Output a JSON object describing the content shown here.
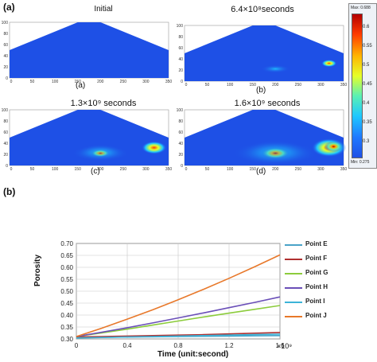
{
  "figure": {
    "label_a": "(a)",
    "label_b": "(b)"
  },
  "simulations": [
    {
      "title": "Initial",
      "sub": "(a)",
      "plume": 0
    },
    {
      "title": "6.4×10⁸seconds",
      "sub": "(b)",
      "plume": 1
    },
    {
      "title": "1.3×10⁹ seconds",
      "sub": "(c)",
      "plume": 2
    },
    {
      "title": "1.6×10⁹ seconds",
      "sub": "(d)",
      "plume": 3
    }
  ],
  "sim_axes": {
    "y_ticks": [
      "100",
      "80",
      "60",
      "40",
      "20",
      "0"
    ],
    "x_ticks": [
      "0",
      "50",
      "100",
      "150",
      "200",
      "250",
      "300",
      "350"
    ]
  },
  "colorbar": {
    "max_label": "Max: 0.688",
    "min_label": "Min: 0.275",
    "ticks": [
      "0.6",
      "0.55",
      "0.5",
      "0.45",
      "0.4",
      "0.35",
      "0.3"
    ],
    "colors": [
      "#b40000",
      "#ff3c00",
      "#ffb400",
      "#e6ff28",
      "#5af0b4",
      "#1ec8ff",
      "#1e78ff",
      "#1e50e6"
    ]
  },
  "chart_data": {
    "type": "line",
    "xlabel": "Time (unit:second)",
    "ylabel": "Porosity",
    "x_multiplier": "×10⁹",
    "xlim": [
      0,
      1.6
    ],
    "ylim": [
      0.3,
      0.7
    ],
    "x_ticks": [
      "0",
      "0.4",
      "0.8",
      "1.2",
      "1.6"
    ],
    "y_ticks": [
      "0.70",
      "0.65",
      "0.60",
      "0.55",
      "0.50",
      "0.45",
      "0.40",
      "0.35",
      "0.30"
    ],
    "grid": true,
    "legend_position": "right",
    "x": [
      0,
      0.2,
      0.4,
      0.6,
      0.8,
      1.0,
      1.2,
      1.4,
      1.6
    ],
    "series": [
      {
        "name": "Point E",
        "color": "#4aa3c8",
        "values": [
          0.306,
          0.307,
          0.308,
          0.309,
          0.31,
          0.311,
          0.312,
          0.313,
          0.314
        ]
      },
      {
        "name": "Point F",
        "color": "#b03030",
        "values": [
          0.308,
          0.31,
          0.312,
          0.314,
          0.316,
          0.318,
          0.321,
          0.324,
          0.327
        ]
      },
      {
        "name": "Point G",
        "color": "#8ccc3c",
        "values": [
          0.31,
          0.325,
          0.341,
          0.358,
          0.375,
          0.392,
          0.408,
          0.424,
          0.44
        ]
      },
      {
        "name": "Point H",
        "color": "#6a4fb8",
        "values": [
          0.31,
          0.328,
          0.347,
          0.367,
          0.388,
          0.409,
          0.431,
          0.453,
          0.476
        ]
      },
      {
        "name": "Point I",
        "color": "#3cb4d8",
        "values": [
          0.304,
          0.306,
          0.308,
          0.31,
          0.312,
          0.314,
          0.316,
          0.318,
          0.32
        ]
      },
      {
        "name": "Point J",
        "color": "#e8782a",
        "values": [
          0.31,
          0.345,
          0.383,
          0.422,
          0.464,
          0.508,
          0.554,
          0.602,
          0.652
        ]
      }
    ]
  }
}
